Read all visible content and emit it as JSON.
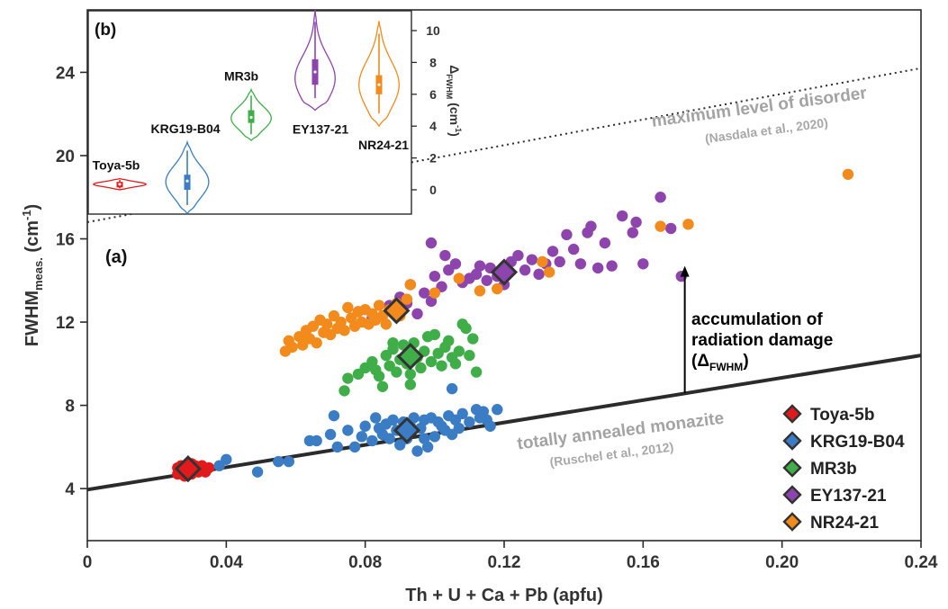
{
  "chart_data": [
    {
      "panel": "(a)",
      "type": "scatter",
      "xlabel": "Th + U + Ca + Pb (apfu)",
      "ylabel_main": "FWHM",
      "ylabel_sub": "meas.",
      "ylabel_unit": "(cm",
      "ylabel_sup": "-1",
      "ylabel_close": ")",
      "xlim": [
        0,
        0.24
      ],
      "ylim": [
        1.5,
        27
      ],
      "x_ticks": [
        0,
        0.04,
        0.08,
        0.12,
        0.16,
        0.2,
        0.24
      ],
      "x_tick_labels": [
        "0",
        "0.04",
        "0.08",
        "0.12",
        "0.16",
        "0.20",
        "0.24"
      ],
      "y_ticks": [
        4,
        8,
        12,
        16,
        20,
        24
      ],
      "y_tick_labels": [
        "4",
        "8",
        "12",
        "16",
        "20",
        "24"
      ],
      "grid": false,
      "legend_position": "bottom-right",
      "lines": [
        {
          "label": "totally annealed monazite",
          "citation": "(Ruschel et al., 2012)",
          "style": "solid",
          "color": "#2b2b2b",
          "x": [
            0,
            0.24
          ],
          "y": [
            3.95,
            10.4
          ]
        },
        {
          "label": "maximum level of disorder",
          "citation": "(Nasdala et al., 2020)",
          "style": "dotted",
          "color": "#2b2b2b",
          "x": [
            0,
            0.24
          ],
          "y": [
            16.8,
            24.2
          ]
        }
      ],
      "annotations": {
        "damage_line1": "accumulation of",
        "damage_line2": "radiation damage",
        "damage_open": "(Δ",
        "damage_sub": "FWHM",
        "damage_close": ")",
        "arrow": {
          "x": 0.172,
          "from": 8.6,
          "to": 14.7
        }
      },
      "series": [
        {
          "name": "Toya-5b",
          "color": "#e31a1c",
          "points": [
            [
              0.026,
              4.7
            ],
            [
              0.026,
              5.0
            ],
            [
              0.027,
              4.8
            ],
            [
              0.027,
              5.1
            ],
            [
              0.028,
              4.9
            ],
            [
              0.028,
              4.6
            ],
            [
              0.029,
              5.2
            ],
            [
              0.029,
              4.8
            ],
            [
              0.03,
              5.0
            ],
            [
              0.03,
              4.7
            ],
            [
              0.031,
              5.1
            ],
            [
              0.031,
              4.9
            ],
            [
              0.032,
              4.8
            ],
            [
              0.032,
              5.0
            ],
            [
              0.033,
              4.9
            ],
            [
              0.033,
              5.1
            ],
            [
              0.034,
              4.8
            ],
            [
              0.035,
              5.0
            ],
            [
              0.027,
              4.9
            ],
            [
              0.03,
              5.2
            ]
          ],
          "mean": [
            0.029,
            4.95
          ]
        },
        {
          "name": "KRG19-B04",
          "color": "#3b7dc4",
          "points": [
            [
              0.04,
              5.4
            ],
            [
              0.038,
              5.1
            ],
            [
              0.049,
              4.8
            ],
            [
              0.055,
              5.3
            ],
            [
              0.058,
              5.3
            ],
            [
              0.064,
              6.3
            ],
            [
              0.066,
              6.3
            ],
            [
              0.07,
              6.6
            ],
            [
              0.071,
              7.5
            ],
            [
              0.072,
              6.0
            ],
            [
              0.075,
              6.8
            ],
            [
              0.077,
              6.0
            ],
            [
              0.079,
              6.5
            ],
            [
              0.08,
              7.0
            ],
            [
              0.082,
              6.3
            ],
            [
              0.083,
              7.4
            ],
            [
              0.084,
              6.9
            ],
            [
              0.085,
              6.6
            ],
            [
              0.086,
              7.1
            ],
            [
              0.087,
              6.4
            ],
            [
              0.088,
              7.3
            ],
            [
              0.089,
              6.8
            ],
            [
              0.09,
              6.1
            ],
            [
              0.091,
              7.2
            ],
            [
              0.092,
              6.4
            ],
            [
              0.093,
              7.0
            ],
            [
              0.094,
              7.4
            ],
            [
              0.095,
              5.8
            ],
            [
              0.096,
              6.9
            ],
            [
              0.097,
              7.3
            ],
            [
              0.098,
              6.0
            ],
            [
              0.099,
              7.4
            ],
            [
              0.1,
              6.5
            ],
            [
              0.101,
              7.2
            ],
            [
              0.102,
              7.0
            ],
            [
              0.103,
              6.8
            ],
            [
              0.104,
              7.5
            ],
            [
              0.105,
              6.6
            ],
            [
              0.106,
              7.3
            ],
            [
              0.107,
              6.9
            ],
            [
              0.108,
              7.6
            ],
            [
              0.11,
              7.2
            ],
            [
              0.112,
              7.8
            ],
            [
              0.113,
              7.4
            ],
            [
              0.114,
              7.7
            ],
            [
              0.115,
              7.3
            ],
            [
              0.116,
              7.0
            ],
            [
              0.118,
              7.8
            ],
            [
              0.105,
              8.8
            ],
            [
              0.097,
              6.4
            ]
          ],
          "mean": [
            0.092,
            6.8
          ]
        },
        {
          "name": "MR3b",
          "color": "#3fae49",
          "points": [
            [
              0.074,
              8.7
            ],
            [
              0.075,
              9.3
            ],
            [
              0.078,
              9.5
            ],
            [
              0.08,
              9.8
            ],
            [
              0.082,
              10.1
            ],
            [
              0.083,
              9.7
            ],
            [
              0.084,
              9.4
            ],
            [
              0.086,
              10.4
            ],
            [
              0.087,
              9.9
            ],
            [
              0.088,
              10.7
            ],
            [
              0.089,
              9.6
            ],
            [
              0.09,
              10.2
            ],
            [
              0.091,
              10.9
            ],
            [
              0.092,
              10.0
            ],
            [
              0.093,
              9.5
            ],
            [
              0.094,
              11.0
            ],
            [
              0.095,
              10.3
            ],
            [
              0.096,
              9.8
            ],
            [
              0.097,
              10.6
            ],
            [
              0.098,
              11.3
            ],
            [
              0.099,
              10.1
            ],
            [
              0.1,
              11.4
            ],
            [
              0.101,
              10.5
            ],
            [
              0.102,
              9.9
            ],
            [
              0.103,
              10.8
            ],
            [
              0.104,
              11.1
            ],
            [
              0.105,
              10.3
            ],
            [
              0.106,
              10.0
            ],
            [
              0.107,
              10.6
            ],
            [
              0.108,
              11.9
            ],
            [
              0.109,
              11.7
            ],
            [
              0.11,
              10.4
            ],
            [
              0.111,
              11.2
            ],
            [
              0.112,
              9.6
            ],
            [
              0.085,
              8.9
            ],
            [
              0.093,
              9.0
            ],
            [
              0.088,
              11.0
            ]
          ],
          "mean": [
            0.093,
            10.35
          ]
        },
        {
          "name": "EY137-21",
          "color": "#8e44ad",
          "points": [
            [
              0.078,
              12.5
            ],
            [
              0.082,
              12.2
            ],
            [
              0.087,
              12.8
            ],
            [
              0.09,
              13.2
            ],
            [
              0.092,
              12.9
            ],
            [
              0.093,
              13.8
            ],
            [
              0.095,
              12.4
            ],
            [
              0.097,
              13.4
            ],
            [
              0.099,
              13.0
            ],
            [
              0.1,
              14.2
            ],
            [
              0.102,
              13.7
            ],
            [
              0.104,
              14.5
            ],
            [
              0.106,
              14.8
            ],
            [
              0.108,
              13.9
            ],
            [
              0.11,
              14.1
            ],
            [
              0.112,
              14.3
            ],
            [
              0.113,
              14.7
            ],
            [
              0.115,
              14.0
            ],
            [
              0.116,
              14.6
            ],
            [
              0.118,
              14.2
            ],
            [
              0.12,
              13.8
            ],
            [
              0.122,
              14.9
            ],
            [
              0.124,
              15.2
            ],
            [
              0.126,
              14.5
            ],
            [
              0.128,
              15.0
            ],
            [
              0.13,
              14.3
            ],
            [
              0.132,
              14.8
            ],
            [
              0.134,
              15.4
            ],
            [
              0.136,
              14.9
            ],
            [
              0.138,
              16.2
            ],
            [
              0.14,
              15.5
            ],
            [
              0.142,
              14.8
            ],
            [
              0.144,
              16.3
            ],
            [
              0.145,
              16.6
            ],
            [
              0.147,
              14.6
            ],
            [
              0.149,
              15.8
            ],
            [
              0.151,
              14.7
            ],
            [
              0.154,
              17.1
            ],
            [
              0.157,
              16.3
            ],
            [
              0.158,
              16.8
            ],
            [
              0.16,
              14.8
            ],
            [
              0.165,
              18.0
            ],
            [
              0.168,
              16.5
            ],
            [
              0.171,
              14.2
            ],
            [
              0.099,
              15.8
            ],
            [
              0.103,
              15.2
            ]
          ],
          "mean": [
            0.12,
            14.4
          ]
        },
        {
          "name": "NR24-21",
          "color": "#f28a1c",
          "points": [
            [
              0.057,
              10.6
            ],
            [
              0.058,
              11.1
            ],
            [
              0.059,
              10.8
            ],
            [
              0.061,
              11.3
            ],
            [
              0.062,
              10.9
            ],
            [
              0.063,
              11.6
            ],
            [
              0.064,
              11.2
            ],
            [
              0.065,
              11.8
            ],
            [
              0.066,
              11.0
            ],
            [
              0.067,
              12.1
            ],
            [
              0.068,
              11.5
            ],
            [
              0.069,
              11.9
            ],
            [
              0.07,
              11.4
            ],
            [
              0.071,
              12.3
            ],
            [
              0.072,
              11.7
            ],
            [
              0.073,
              12.0
            ],
            [
              0.074,
              11.6
            ],
            [
              0.075,
              12.7
            ],
            [
              0.076,
              12.2
            ],
            [
              0.077,
              11.8
            ],
            [
              0.078,
              12.5
            ],
            [
              0.079,
              12.0
            ],
            [
              0.08,
              12.6
            ],
            [
              0.081,
              11.9
            ],
            [
              0.082,
              12.4
            ],
            [
              0.083,
              12.1
            ],
            [
              0.084,
              12.8
            ],
            [
              0.085,
              12.3
            ],
            [
              0.086,
              11.9
            ],
            [
              0.087,
              12.6
            ],
            [
              0.089,
              12.9
            ],
            [
              0.09,
              12.3
            ],
            [
              0.092,
              13.1
            ],
            [
              0.093,
              13.8
            ],
            [
              0.1,
              13.4
            ],
            [
              0.107,
              14.1
            ],
            [
              0.113,
              13.5
            ],
            [
              0.118,
              13.6
            ],
            [
              0.131,
              14.9
            ],
            [
              0.133,
              14.4
            ],
            [
              0.165,
              16.6
            ],
            [
              0.173,
              16.7
            ],
            [
              0.219,
              19.1
            ]
          ],
          "mean": [
            0.089,
            12.55
          ]
        }
      ]
    },
    {
      "panel": "(b)",
      "type": "violin",
      "ylabel_main": "Δ",
      "ylabel_sub": "FWHM",
      "ylabel_unit": "(cm",
      "ylabel_sup": "-1",
      "ylabel_close": ")",
      "ylim": [
        -2.2,
        11.5
      ],
      "y_ticks": [
        0,
        2,
        4,
        6,
        8,
        10
      ],
      "y_tick_labels": [
        "0",
        "2",
        "4",
        "6",
        "8",
        "10"
      ],
      "violins": [
        {
          "name": "Toya-5b",
          "color": "#e31a1c",
          "min": 0.0,
          "max": 0.7,
          "q1": 0.15,
          "median": 0.35,
          "q3": 0.5,
          "peak": 0.35,
          "width": 0.55
        },
        {
          "name": "KRG19-B04",
          "color": "#3b7dc4",
          "min": -1.5,
          "max": 3.0,
          "q1": 0.0,
          "median": 0.55,
          "q3": 0.95,
          "peak": 0.5,
          "width": 0.45
        },
        {
          "name": "MR3b",
          "color": "#3fae49",
          "min": 3.1,
          "max": 6.3,
          "q1": 4.2,
          "median": 4.55,
          "q3": 5.0,
          "peak": 4.5,
          "width": 0.42
        },
        {
          "name": "EY137-21",
          "color": "#8e44ad",
          "min": 5.0,
          "max": 11.3,
          "q1": 6.6,
          "median": 7.4,
          "q3": 8.2,
          "peak": 7.0,
          "width": 0.42
        },
        {
          "name": "NR24-21",
          "color": "#f28a1c",
          "min": 4.0,
          "max": 10.6,
          "q1": 6.0,
          "median": 6.6,
          "q3": 7.2,
          "peak": 6.6,
          "width": 0.42
        }
      ]
    }
  ]
}
